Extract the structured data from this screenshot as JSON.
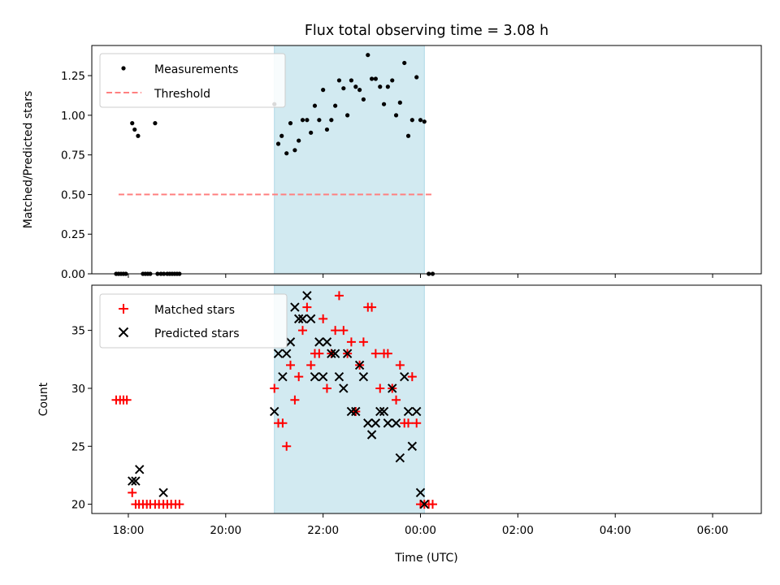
{
  "title": "Flux total observing time = 3.08 h",
  "colors": {
    "matched": "#ff0000",
    "predicted": "#000000",
    "threshold": "#ff8080",
    "highlight": "#add8e6"
  },
  "chart_data": [
    {
      "type": "scatter",
      "ylabel": "Matched/Predicted stars",
      "xlim": [
        -0.75,
        13.0
      ],
      "ylim": [
        0,
        1.44
      ],
      "yticks": [
        "0.00",
        "0.25",
        "0.50",
        "0.75",
        "1.00",
        "1.25"
      ],
      "legend_position": "top-left",
      "highlight_span": {
        "x": [
          3.0,
          6.08
        ]
      },
      "threshold": {
        "name": "Threshold",
        "value": 0.5,
        "x": [
          -0.2,
          6.25
        ]
      },
      "series": [
        {
          "name": "Measurements",
          "x": [
            -0.25,
            -0.2,
            -0.15,
            -0.1,
            -0.05,
            0.08,
            0.13,
            0.2,
            0.3,
            0.35,
            0.4,
            0.45,
            0.55,
            0.6,
            0.67,
            0.73,
            0.8,
            0.85,
            0.9,
            0.95,
            1.0,
            1.05,
            3.0,
            3.08,
            3.15,
            3.25,
            3.33,
            3.42,
            3.5,
            3.58,
            3.67,
            3.75,
            3.83,
            3.92,
            4.0,
            4.08,
            4.17,
            4.25,
            4.33,
            4.42,
            4.5,
            4.58,
            4.67,
            4.75,
            4.83,
            4.92,
            5.0,
            5.08,
            5.17,
            5.25,
            5.33,
            5.42,
            5.5,
            5.58,
            5.67,
            5.75,
            5.83,
            5.92,
            6.0,
            6.08,
            6.17,
            6.25
          ],
          "y": [
            0,
            0,
            0,
            0,
            0,
            0.95,
            0.91,
            0.87,
            0,
            0,
            0,
            0,
            0.95,
            0,
            0,
            0,
            0,
            0,
            0,
            0,
            0,
            0,
            1.07,
            0.82,
            0.87,
            0.76,
            0.95,
            0.78,
            0.84,
            0.97,
            0.97,
            0.89,
            1.06,
            0.97,
            1.16,
            0.91,
            0.97,
            1.06,
            1.22,
            1.17,
            1.0,
            1.22,
            1.18,
            1.16,
            1.1,
            1.38,
            1.23,
            1.23,
            1.18,
            1.07,
            1.18,
            1.22,
            1.0,
            1.08,
            1.33,
            0.87,
            0.97,
            1.24,
            0.97,
            0.96,
            0,
            0
          ]
        }
      ]
    },
    {
      "type": "scatter",
      "xlabel": "Time (UTC)",
      "ylabel": "Count",
      "xlim": [
        -0.75,
        13.0
      ],
      "ylim": [
        19.2,
        38.9
      ],
      "yticks": [
        "20",
        "25",
        "30",
        "35"
      ],
      "xticks": [
        {
          "x": 0,
          "label": "18:00"
        },
        {
          "x": 2,
          "label": "20:00"
        },
        {
          "x": 4,
          "label": "22:00"
        },
        {
          "x": 6,
          "label": "00:00"
        },
        {
          "x": 8,
          "label": "02:00"
        },
        {
          "x": 10,
          "label": "04:00"
        },
        {
          "x": 12,
          "label": "06:00"
        }
      ],
      "legend_position": "top-left",
      "highlight_span": {
        "x": [
          3.0,
          6.08
        ]
      },
      "series": [
        {
          "name": "Matched stars",
          "x": [
            -0.25,
            -0.17,
            -0.1,
            -0.03,
            0.08,
            0.15,
            0.22,
            0.3,
            0.38,
            0.45,
            0.55,
            0.63,
            0.72,
            0.8,
            0.88,
            0.97,
            1.05,
            3.0,
            3.08,
            3.17,
            3.25,
            3.33,
            3.42,
            3.5,
            3.58,
            3.67,
            3.75,
            3.83,
            3.92,
            4.0,
            4.08,
            4.17,
            4.25,
            4.33,
            4.42,
            4.5,
            4.58,
            4.67,
            4.75,
            4.83,
            4.92,
            5.0,
            5.08,
            5.17,
            5.25,
            5.33,
            5.42,
            5.5,
            5.58,
            5.67,
            5.75,
            5.83,
            5.92,
            6.0,
            6.08,
            6.17,
            6.25
          ],
          "y": [
            29,
            29,
            29,
            29,
            21,
            20,
            20,
            20,
            20,
            20,
            20,
            20,
            20,
            20,
            20,
            20,
            20,
            30,
            27,
            27,
            25,
            32,
            29,
            31,
            35,
            37,
            32,
            33,
            33,
            36,
            30,
            33,
            35,
            38,
            35,
            33,
            34,
            28,
            32,
            34,
            37,
            37,
            33,
            30,
            33,
            33,
            30,
            29,
            32,
            27,
            27,
            31,
            27,
            20,
            20,
            20,
            20
          ]
        },
        {
          "name": "Predicted stars",
          "x": [
            0.08,
            0.15,
            0.23,
            0.72,
            3.0,
            3.08,
            3.17,
            3.25,
            3.33,
            3.42,
            3.5,
            3.58,
            3.67,
            3.75,
            3.83,
            3.92,
            4.0,
            4.08,
            4.17,
            4.25,
            4.33,
            4.42,
            4.5,
            4.58,
            4.67,
            4.75,
            4.83,
            4.92,
            5.0,
            5.08,
            5.17,
            5.25,
            5.33,
            5.42,
            5.5,
            5.58,
            5.67,
            5.75,
            5.83,
            5.92,
            6.0,
            6.08
          ],
          "y": [
            22,
            22,
            23,
            21,
            28,
            33,
            31,
            33,
            34,
            37,
            36,
            36,
            38,
            36,
            31,
            34,
            31,
            34,
            33,
            33,
            31,
            30,
            33,
            28,
            28,
            32,
            31,
            27,
            26,
            27,
            28,
            28,
            27,
            30,
            27,
            24,
            31,
            28,
            25,
            28,
            21,
            20
          ]
        }
      ]
    }
  ]
}
